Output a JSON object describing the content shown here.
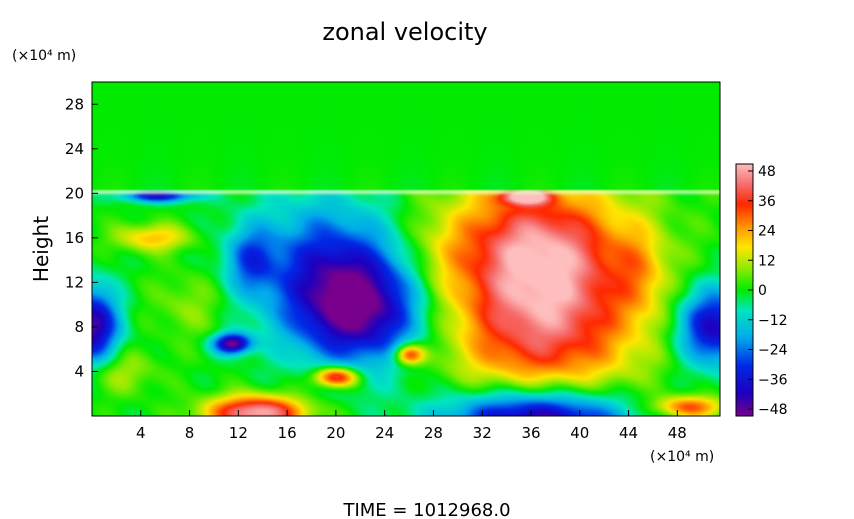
{
  "chart_data": {
    "type": "heatmap",
    "title": "zonal velocity",
    "xlabel": "",
    "ylabel": "Height",
    "x_unit_label": "(×10⁴ m)",
    "y_unit_label": "(×10⁴ m)",
    "xlim": [
      0,
      51.5
    ],
    "ylim": [
      0,
      30
    ],
    "x_ticks": [
      4,
      8,
      12,
      16,
      20,
      24,
      28,
      32,
      36,
      40,
      44,
      48
    ],
    "y_ticks": [
      4,
      8,
      12,
      16,
      20,
      24,
      28
    ],
    "colorbar": {
      "ticks": [
        48,
        36,
        24,
        12,
        0,
        -12,
        -24,
        -36,
        -48
      ],
      "min": -48,
      "max": 48
    },
    "background_value": 0,
    "features": [
      {
        "x": 37,
        "y": 10,
        "rx": 8,
        "ry": 9,
        "amp": 44
      },
      {
        "x": 36,
        "y": 16,
        "rx": 7,
        "ry": 5,
        "amp": 18
      },
      {
        "x": 22,
        "y": 9.5,
        "rx": 5.5,
        "ry": 5,
        "amp": -44
      },
      {
        "x": 19,
        "y": 14,
        "rx": 6,
        "ry": 6,
        "amp": -24
      },
      {
        "x": 13,
        "y": 14,
        "rx": 2,
        "ry": 3,
        "amp": -20
      },
      {
        "x": 0,
        "y": 8,
        "rx": 2.2,
        "ry": 3.5,
        "amp": -44
      },
      {
        "x": 51,
        "y": 8,
        "rx": 3,
        "ry": 3.5,
        "amp": -40
      },
      {
        "x": 36.5,
        "y": -0.5,
        "rx": 7.5,
        "ry": 3,
        "amp": -55
      },
      {
        "x": 13.5,
        "y": 0.3,
        "rx": 4,
        "ry": 1.5,
        "amp": 48
      },
      {
        "x": 20,
        "y": 3.5,
        "rx": 1.8,
        "ry": 0.9,
        "amp": 44
      },
      {
        "x": 11.5,
        "y": 6.5,
        "rx": 1.5,
        "ry": 0.9,
        "amp": -48
      },
      {
        "x": 26,
        "y": 5.5,
        "rx": 1.2,
        "ry": 0.9,
        "amp": 38
      },
      {
        "x": 5,
        "y": 16,
        "rx": 3,
        "ry": 1.2,
        "amp": 20
      },
      {
        "x": 5.5,
        "y": 19.8,
        "rx": 3,
        "ry": 0.6,
        "amp": -36
      },
      {
        "x": 35.5,
        "y": 19.7,
        "rx": 2,
        "ry": 0.7,
        "amp": 38
      },
      {
        "x": 49,
        "y": 0.8,
        "rx": 3,
        "ry": 1,
        "amp": 30
      },
      {
        "x": 8,
        "y": 10,
        "rx": 3,
        "ry": 3,
        "amp": 8
      },
      {
        "x": 45,
        "y": 13,
        "rx": 2,
        "ry": 4,
        "amp": 10
      },
      {
        "x": 28,
        "y": 14,
        "rx": 2.5,
        "ry": 4,
        "amp": 6
      },
      {
        "x": 2,
        "y": 4,
        "rx": 3,
        "ry": 2,
        "amp": 12
      }
    ],
    "band": {
      "y": 20.3,
      "thickness": 0.4
    },
    "grid": false,
    "legend": "colorbar-right"
  },
  "footer": {
    "time_label": "TIME = 1012968.0"
  }
}
